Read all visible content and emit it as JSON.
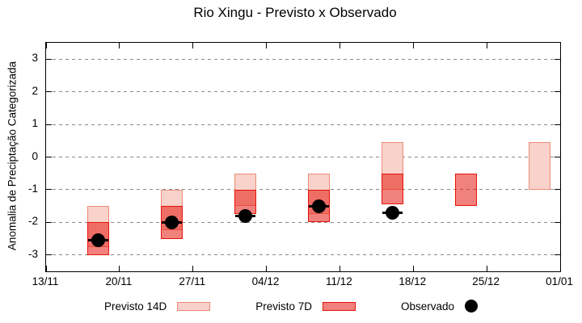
{
  "chart_data": {
    "type": "bar",
    "subtype": "forecast-interval-candlesticks-with-observed-points",
    "title": "Rio Xingu - Previsto x Observado",
    "ylabel": "Anomalia de Preciptação Categorizada",
    "ylim": [
      -3.5,
      3.5
    ],
    "yticks": [
      3,
      2,
      1,
      0,
      -1,
      -2,
      -3
    ],
    "grid": "horizontal-dashed-gray",
    "x_axis": {
      "tick_labels": [
        "13/11",
        "20/11",
        "27/11",
        "04/12",
        "11/12",
        "18/12",
        "25/12",
        "01/01"
      ],
      "tick_days": [
        0,
        7,
        14,
        21,
        28,
        35,
        42,
        49
      ],
      "range_days": [
        0,
        49
      ]
    },
    "series": [
      {
        "name": "Previsto 14D",
        "type": "range-bar",
        "fill": "#f8d2cb",
        "border": "#ef8a76"
      },
      {
        "name": "Previsto 7D",
        "type": "range-bar",
        "fill": "rgba(230,25,18,0.55)",
        "border": "#e41408"
      },
      {
        "name": "Observado",
        "type": "point",
        "color": "#000000"
      }
    ],
    "groups": [
      {
        "date": "18/11",
        "day": 5,
        "previsto14": [
          -1.5,
          -2.75
        ],
        "previsto7": [
          -2.0,
          -3.0
        ],
        "observado": -2.55
      },
      {
        "date": "25/11",
        "day": 12,
        "previsto14": [
          -1.0,
          -2.25
        ],
        "previsto7": [
          -1.5,
          -2.5
        ],
        "observado": -2.0
      },
      {
        "date": "02/12",
        "day": 19,
        "previsto14": [
          -0.5,
          -1.5
        ],
        "previsto7": [
          -1.0,
          -1.75
        ],
        "observado": -1.8
      },
      {
        "date": "09/12",
        "day": 26,
        "previsto14": [
          -0.5,
          -1.75
        ],
        "previsto7": [
          -1.0,
          -2.0
        ],
        "observado": -1.5
      },
      {
        "date": "16/12",
        "day": 33,
        "previsto14": [
          0.45,
          -1.0
        ],
        "previsto7": [
          -0.5,
          -1.45
        ],
        "observado": -1.7
      },
      {
        "date": "23/12",
        "day": 40,
        "previsto14": null,
        "previsto7": [
          -0.5,
          -1.5
        ],
        "observado": null
      },
      {
        "date": "30/12",
        "day": 47,
        "previsto14": [
          0.45,
          -1.0
        ],
        "previsto7": null,
        "observado": null
      }
    ],
    "legend": {
      "position": "bottom",
      "entries": [
        {
          "label": "Previsto 14D",
          "swatch": "box-light"
        },
        {
          "label": "Previsto 7D",
          "swatch": "box-red"
        },
        {
          "label": "Observado",
          "swatch": "dot-black"
        }
      ]
    },
    "colors": {
      "previsto14_fill": "#f8d2cb",
      "previsto14_border": "#ef8a76",
      "previsto7_overlap_fill": "#f25a50",
      "previsto7_solo_fill": "#fa8e86",
      "previsto7_border": "#e41408",
      "observado": "#000000",
      "grid": "#8a8a8a",
      "background": "#ffffff"
    }
  }
}
